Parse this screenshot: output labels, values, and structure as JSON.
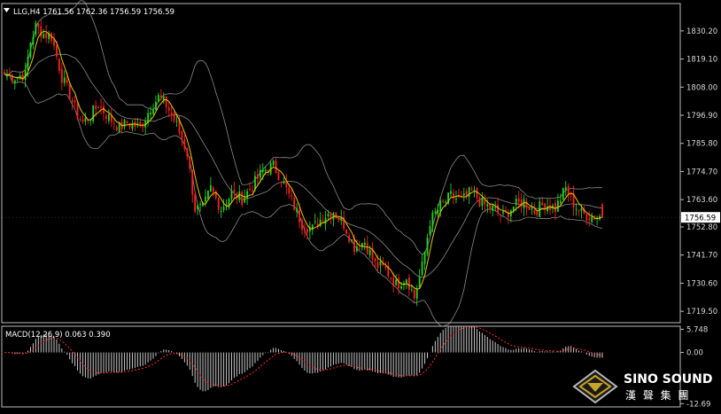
{
  "header": {
    "symbol_text": "LLG,H4  1761.56 1762.36 1756.59 1756.59"
  },
  "macd_header": {
    "text": "MACD(12,26,9) 0.063 0.390"
  },
  "logo": {
    "english": "SINO SOUND",
    "chinese": "漢 聲 集 團"
  },
  "colors": {
    "background": "#000000",
    "bull": "#21d421",
    "bear": "#ff1e1e",
    "ma": "#e8c800",
    "bands": "#8a8a8a",
    "axis_text": "#d8d8d8",
    "price_tag_bg": "#ffffff",
    "macd_hist": "#c8c8c8",
    "macd_signal": "#ff2a2a"
  },
  "chart_data": {
    "type": "candlestick",
    "timeframe": "H4",
    "price_axis": {
      "ylim": [
        1715,
        1841
      ],
      "ticks": [
        "1830.20",
        "1819.10",
        "1808.00",
        "1796.90",
        "1785.80",
        "1774.70",
        "1763.60",
        "1752.80",
        "1741.70",
        "1730.60",
        "1719.50"
      ],
      "tick_values": [
        1830.2,
        1819.1,
        1808.0,
        1796.9,
        1785.8,
        1774.7,
        1763.6,
        1752.8,
        1741.7,
        1730.6,
        1719.5
      ]
    },
    "current_price": {
      "label": "1756.59",
      "value": 1756.59
    },
    "macd_axis": {
      "ylim": [
        -13.5,
        6.5
      ],
      "ticks": [
        "5.748",
        "0.00",
        "-12.69"
      ],
      "tick_values": [
        5.748,
        0.0,
        -12.69
      ]
    },
    "anchors": [
      [
        0,
        1813
      ],
      [
        4,
        1812
      ],
      [
        8,
        1813
      ],
      [
        10,
        1826
      ],
      [
        12,
        1832
      ],
      [
        15,
        1829
      ],
      [
        18,
        1828
      ],
      [
        22,
        1812
      ],
      [
        25,
        1805
      ],
      [
        28,
        1797
      ],
      [
        30,
        1794
      ],
      [
        33,
        1797
      ],
      [
        36,
        1801
      ],
      [
        40,
        1796
      ],
      [
        44,
        1792
      ],
      [
        47,
        1794
      ],
      [
        52,
        1792
      ],
      [
        56,
        1800
      ],
      [
        59,
        1804
      ],
      [
        62,
        1801
      ],
      [
        66,
        1793
      ],
      [
        70,
        1782
      ],
      [
        73,
        1760
      ],
      [
        76,
        1760
      ],
      [
        79,
        1768
      ],
      [
        83,
        1760
      ],
      [
        87,
        1766
      ],
      [
        91,
        1764
      ],
      [
        95,
        1769
      ],
      [
        99,
        1775
      ],
      [
        103,
        1777
      ],
      [
        106,
        1772
      ],
      [
        110,
        1763
      ],
      [
        114,
        1754
      ],
      [
        118,
        1752
      ],
      [
        122,
        1757
      ],
      [
        126,
        1759
      ],
      [
        130,
        1754
      ],
      [
        134,
        1745
      ],
      [
        138,
        1747
      ],
      [
        142,
        1738
      ],
      [
        146,
        1736
      ],
      [
        150,
        1730
      ],
      [
        154,
        1733
      ],
      [
        157,
        1725
      ],
      [
        160,
        1737
      ],
      [
        163,
        1755
      ],
      [
        167,
        1761
      ],
      [
        171,
        1765
      ],
      [
        175,
        1763
      ],
      [
        179,
        1767
      ],
      [
        183,
        1762
      ],
      [
        187,
        1760
      ],
      [
        191,
        1757
      ],
      [
        195,
        1761
      ],
      [
        199,
        1763
      ],
      [
        203,
        1759
      ],
      [
        207,
        1762
      ],
      [
        211,
        1760
      ],
      [
        215,
        1768
      ],
      [
        218,
        1762
      ],
      [
        221,
        1758
      ],
      [
        225,
        1757
      ],
      [
        228,
        1757
      ],
      [
        229,
        1756.59
      ]
    ]
  }
}
